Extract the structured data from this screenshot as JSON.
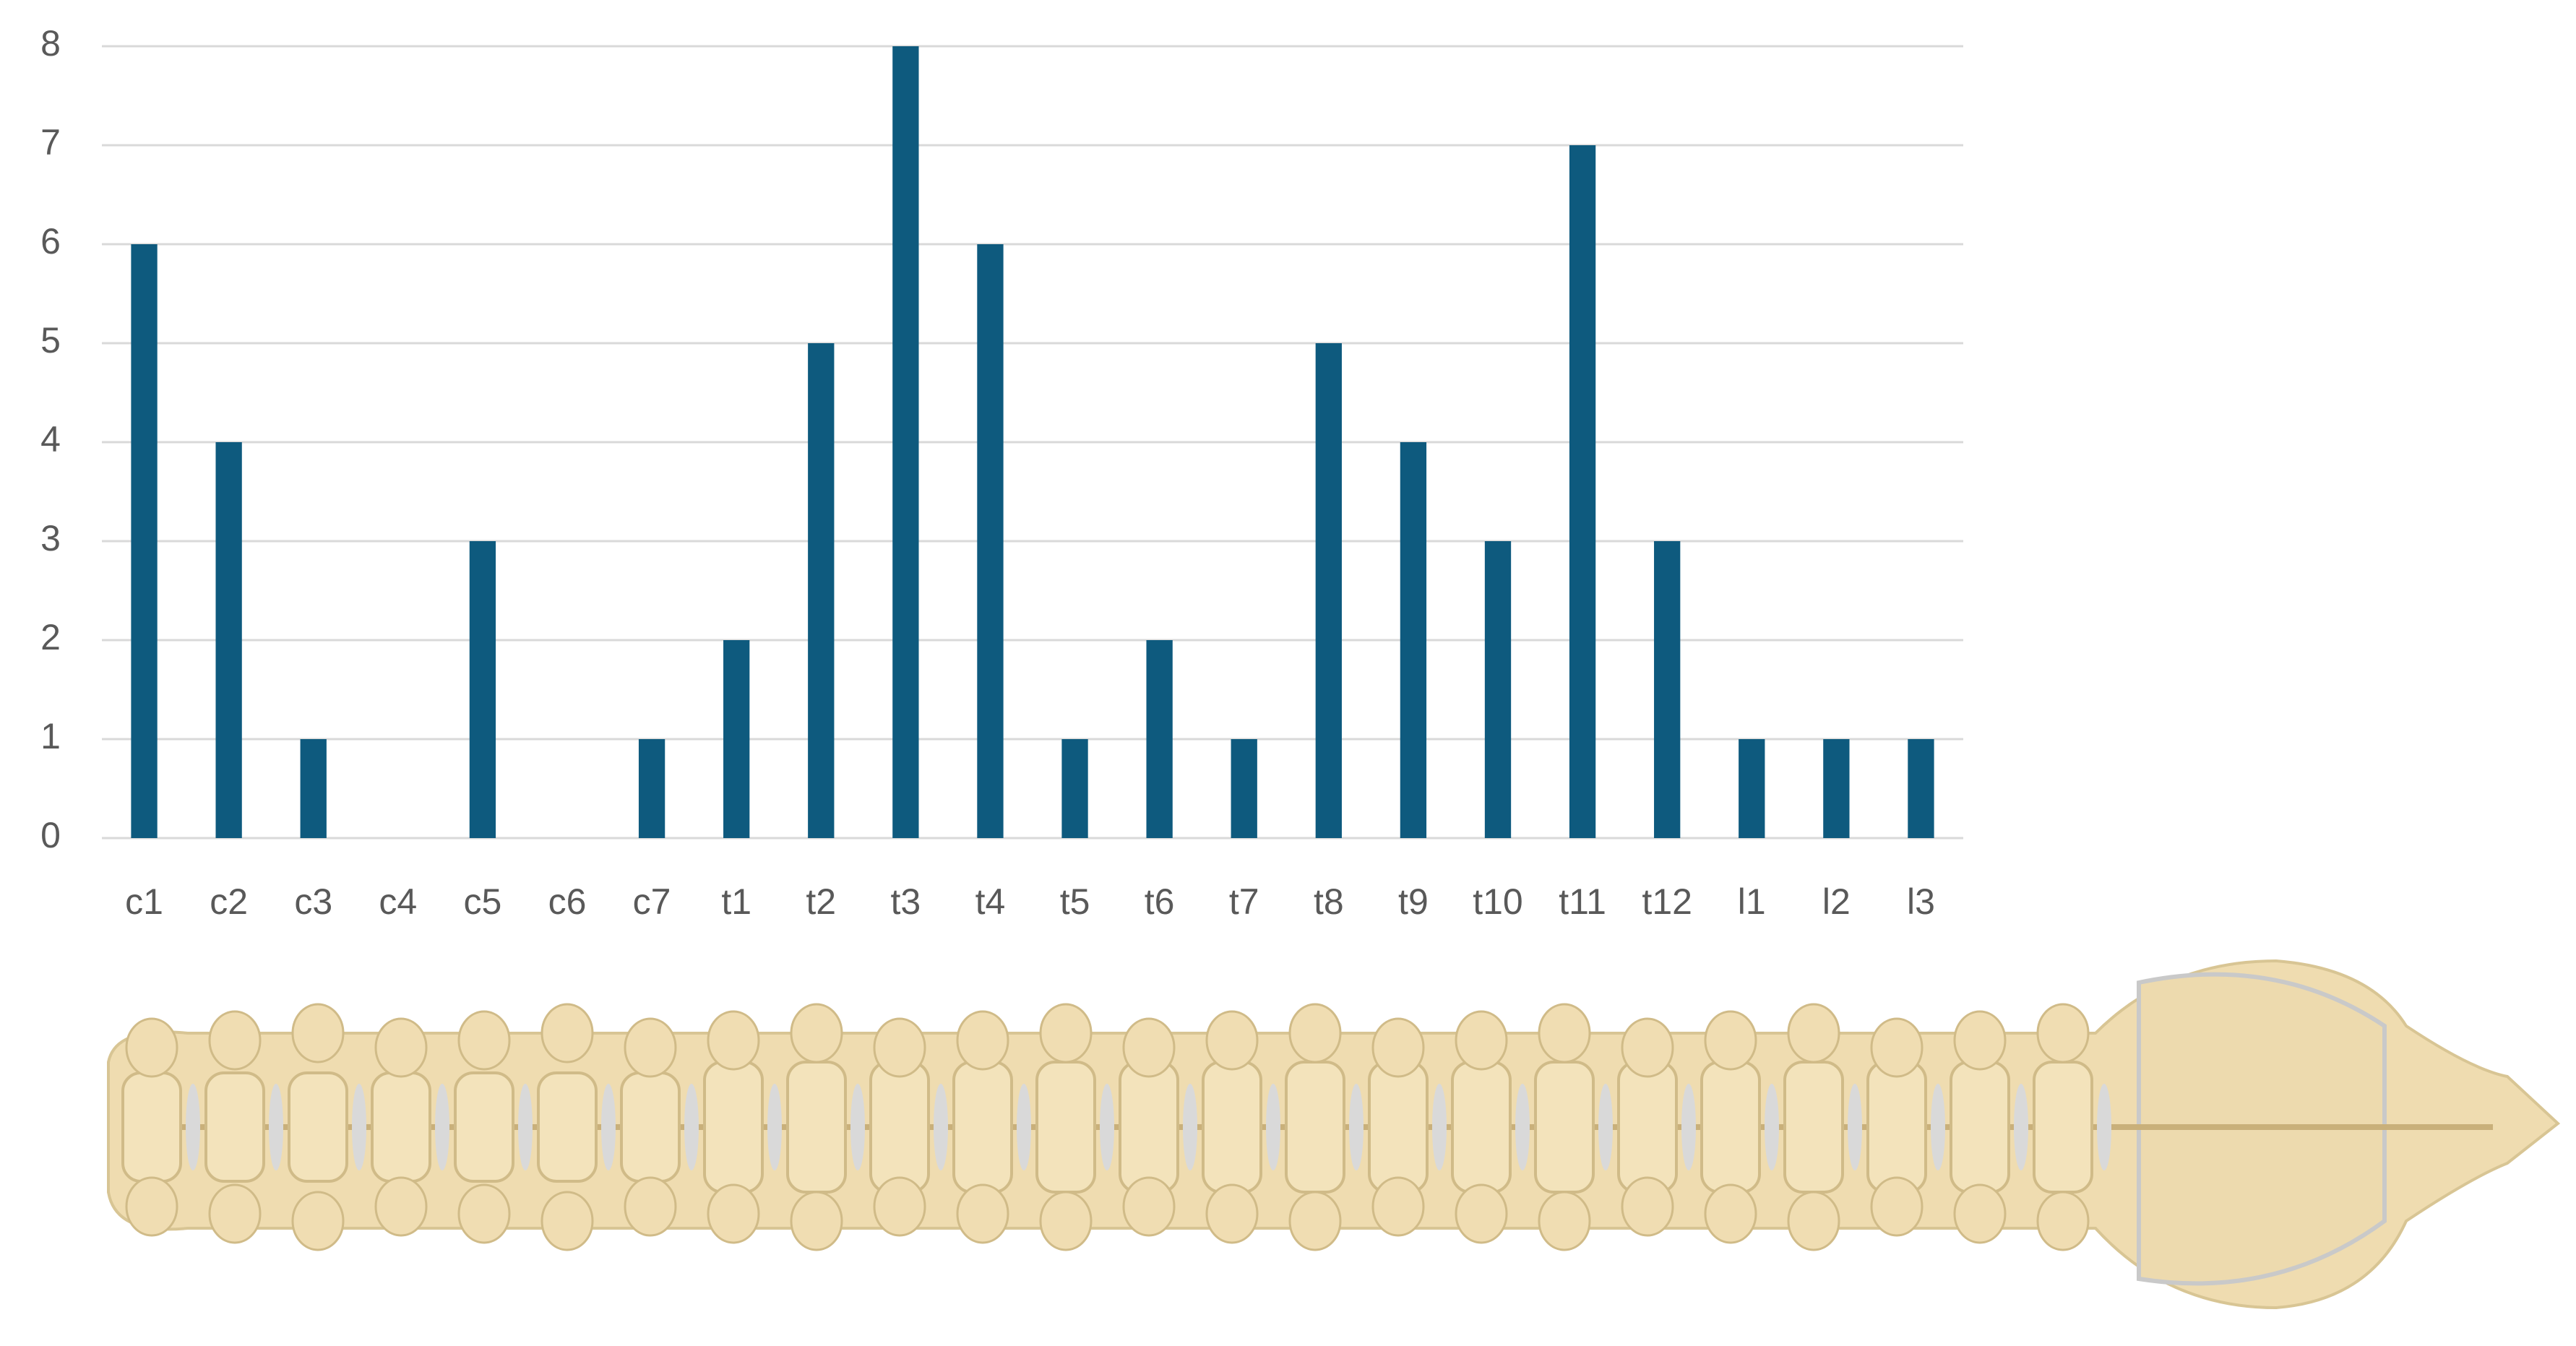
{
  "chart_data": {
    "type": "bar",
    "categories": [
      "c1",
      "c2",
      "c3",
      "c4",
      "c5",
      "c6",
      "c7",
      "t1",
      "t2",
      "t3",
      "t4",
      "t5",
      "t6",
      "t7",
      "t8",
      "t9",
      "t10",
      "t11",
      "t12",
      "l1",
      "l2",
      "l3"
    ],
    "values": [
      6,
      4,
      1,
      0,
      3,
      0,
      1,
      2,
      5,
      8,
      6,
      1,
      2,
      1,
      5,
      4,
      3,
      7,
      3,
      1,
      1,
      1
    ],
    "color": "#0e5a7e",
    "ylim": [
      0,
      8
    ],
    "yticks": [
      0,
      1,
      2,
      3,
      4,
      5,
      6,
      7,
      8
    ],
    "grid": true
  }
}
